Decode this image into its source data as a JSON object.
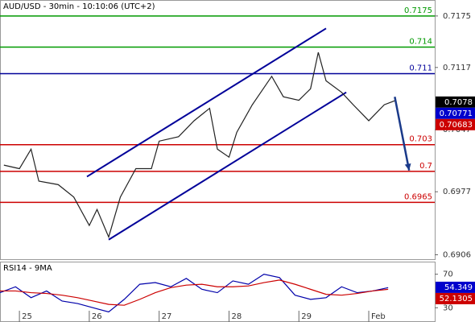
{
  "chart_data": [
    {
      "type": "line",
      "title": "AUD/USD - 30min - 10:10:06 (UTC+2)",
      "color": "#222222",
      "x": [
        1,
        5,
        8,
        10,
        15,
        19,
        23,
        25,
        28,
        31,
        35,
        39,
        41,
        46,
        50,
        54,
        56,
        59,
        61,
        65,
        70,
        73,
        77,
        80,
        82,
        84,
        88,
        91,
        95,
        99,
        102
      ],
      "values": [
        0.7007,
        0.7003,
        0.7025,
        0.6989,
        0.6985,
        0.6971,
        0.6939,
        0.6957,
        0.6926,
        0.6971,
        0.7003,
        0.7003,
        0.7034,
        0.7039,
        0.7057,
        0.7071,
        0.7025,
        0.7016,
        0.7044,
        0.7075,
        0.7107,
        0.7084,
        0.708,
        0.7093,
        0.7134,
        0.7102,
        0.7089,
        0.7075,
        0.7057,
        0.7075,
        0.708
      ],
      "xlim": [
        0,
        112
      ],
      "ylim": [
        0.6901,
        0.7193
      ],
      "yticks": [
        0.7175,
        0.7117,
        0.7047,
        0.6977,
        0.6906
      ],
      "levels": [
        {
          "value": 0.7175,
          "color": "#009900"
        },
        {
          "value": 0.714,
          "color": "#009900"
        },
        {
          "value": 0.711,
          "color": "#000099"
        },
        {
          "value": 0.703,
          "color": "#cc0000"
        },
        {
          "value": 0.7,
          "color": "#cc0000"
        },
        {
          "value": 0.6965,
          "color": "#cc0000"
        }
      ],
      "trendlines": [
        {
          "color": "#000099",
          "x": [
            22.4,
            84
          ],
          "values": [
            0.6994,
            0.7161
          ]
        },
        {
          "color": "#000099",
          "x": [
            28,
            89.2
          ],
          "values": [
            0.6923,
            0.7089
          ]
        }
      ],
      "arrow": {
        "color": "#1a3a8a",
        "x": [
          101.7,
          105.4
        ],
        "values": [
          0.7084,
          0.7001
        ]
      },
      "price_markers": [
        {
          "value": 0.7078,
          "color": "#000000"
        },
        {
          "value": 0.70771,
          "color": "#0000cc"
        },
        {
          "value": 0.70683,
          "color": "#cc0000"
        }
      ]
    },
    {
      "type": "line",
      "title": "RSI14 - 9MA",
      "x": [
        0,
        4,
        8,
        12,
        16,
        20,
        24,
        28,
        32,
        36,
        40,
        44,
        48,
        52,
        56,
        60,
        64,
        68,
        72,
        76,
        80,
        84,
        88,
        92,
        96,
        100
      ],
      "series": [
        {
          "color": "#0000aa",
          "values": [
            48,
            55,
            42,
            50,
            38,
            35,
            30,
            25,
            40,
            58,
            60,
            55,
            65,
            52,
            48,
            62,
            58,
            70,
            66,
            45,
            40,
            42,
            55,
            48,
            50,
            54
          ]
        },
        {
          "color": "#cc0000",
          "values": [
            50,
            50,
            48,
            47,
            45,
            42,
            38,
            34,
            33,
            40,
            48,
            54,
            57,
            58,
            55,
            55,
            56,
            60,
            63,
            58,
            52,
            46,
            45,
            47,
            50,
            52
          ]
        }
      ],
      "xlim": [
        0,
        112
      ],
      "ylim": [
        13,
        85
      ],
      "yticks": [
        70,
        30
      ],
      "xticks": [
        {
          "value": 5,
          "label": "25"
        },
        {
          "value": 23,
          "label": "26"
        },
        {
          "value": 41,
          "label": "27"
        },
        {
          "value": 59,
          "label": "28"
        },
        {
          "value": 77,
          "label": "29"
        },
        {
          "value": 95,
          "label": "Feb"
        }
      ],
      "price_markers": [
        {
          "value": 54.349,
          "color": "#0000cc"
        },
        {
          "value": 52.1305,
          "color": "#cc0000"
        }
      ]
    }
  ]
}
